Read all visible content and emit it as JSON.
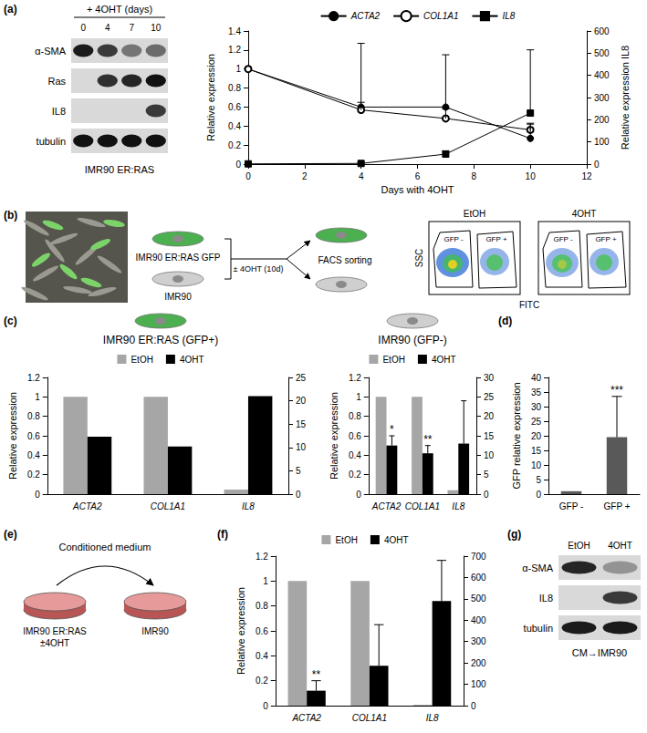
{
  "panel_labels": [
    "(a)",
    "(b)",
    "(c)",
    "(d)",
    "(e)",
    "(f)",
    "(g)"
  ],
  "blots": [
    {
      "header": "+ 4OHT (days)",
      "lanes": [
        "0",
        "4",
        "7",
        "10"
      ],
      "rows": [
        {
          "label": "α-SMA",
          "intensity": [
            0.95,
            0.8,
            0.5,
            0.55
          ]
        },
        {
          "label": "Ras",
          "intensity": [
            0,
            0.85,
            0.9,
            1
          ]
        },
        {
          "label": "IL8",
          "intensity": [
            0,
            0,
            0,
            0.8
          ]
        },
        {
          "label": "tubulin",
          "intensity": [
            1,
            1,
            1,
            1
          ]
        }
      ],
      "caption": "IMR90 ER:RAS"
    },
    {
      "lanes": [
        "EtOH",
        "4OHT"
      ],
      "rows": [
        {
          "label": "α-SMA",
          "intensity": [
            0.9,
            0.35
          ]
        },
        {
          "label": "IL8",
          "intensity": [
            0,
            0.8
          ]
        },
        {
          "label": "tubulin",
          "intensity": [
            0.95,
            0.95
          ]
        }
      ],
      "caption": "CM→IMR90"
    }
  ],
  "diagram_b": {
    "cells": [
      "IMR90 ER:RAS GFP",
      "IMR90"
    ],
    "treatment": "± 4OHT (10d)",
    "sorting": "FACS sorting"
  },
  "facs": {
    "plots": [
      "EtOH",
      "4OHT"
    ],
    "x_label": "FITC",
    "y_label": "SSC",
    "gates": [
      "GFP -",
      "GFP +"
    ]
  },
  "diagram_e": {
    "title": "Conditioned medium",
    "source": [
      "IMR90 ER:RAS",
      "±4OHT"
    ],
    "target": "IMR90"
  },
  "chart_data": [
    {
      "type": "line",
      "x": [
        0,
        4,
        7,
        10
      ],
      "series": [
        {
          "name": "ACTA2",
          "color": "#000000",
          "marker": "circle",
          "values": [
            1,
            0.6,
            0.6,
            0.27
          ],
          "errors": [
            null,
            0.67,
            0.55,
            0.15
          ]
        },
        {
          "name": "COL1A1",
          "color": "#000000",
          "marker": "open circle",
          "values": [
            1,
            0.57,
            0.48,
            0.36
          ],
          "errors": [
            null,
            0.08,
            0.1,
            0.07
          ]
        },
        {
          "name": "IL8",
          "color": "#000000",
          "marker": "square",
          "axis": "y2",
          "values": [
            1,
            3,
            45,
            230
          ],
          "errors": [
            null,
            2,
            15,
            285
          ]
        }
      ],
      "xlim": [
        0,
        12
      ],
      "xticks": [
        0,
        2,
        4,
        6,
        8,
        10,
        12
      ],
      "ylim": [
        0,
        1.4
      ],
      "yticks": [
        0,
        0.2,
        0.4,
        0.6,
        0.8,
        1,
        1.2,
        1.4
      ],
      "y2lim": [
        0,
        600
      ],
      "y2ticks": [
        0,
        100,
        200,
        300,
        400,
        500,
        600
      ],
      "x_label": "Days with 4OHT",
      "y_label": "Relative expression",
      "y2_label": "Relative expression IL8",
      "legend": "top",
      "grid": false
    },
    {
      "type": "bar",
      "title": "IMR90 ER:RAS (GFP+)",
      "categories": [
        "ACTA2",
        "COL1A1",
        "IL8"
      ],
      "series": [
        {
          "name": "EtOH",
          "color": "#a6a6a6",
          "values": [
            1,
            1,
            null
          ]
        },
        {
          "name": "4OHT",
          "color": "#000000",
          "values": [
            0.59,
            0.49,
            null
          ]
        },
        {
          "name": "EtOH",
          "color": "#a6a6a6",
          "axis": "y2",
          "values": [
            null,
            null,
            1
          ]
        },
        {
          "name": "4OHT",
          "color": "#000000",
          "axis": "y2",
          "values": [
            null,
            null,
            21
          ]
        }
      ],
      "ylim": [
        0,
        1.2
      ],
      "yticks": [
        0,
        0.2,
        0.4,
        0.6,
        0.8,
        1,
        1.2
      ],
      "y2lim": [
        0,
        25
      ],
      "y2ticks": [
        0,
        5,
        10,
        15,
        20,
        25
      ],
      "y_label": "Relative expression",
      "legend": "top",
      "grid": false
    },
    {
      "type": "bar",
      "title": "IMR90 (GFP-)",
      "categories": [
        "ACTA2",
        "COL1A1",
        "IL8"
      ],
      "series": [
        {
          "name": "EtOH",
          "color": "#a6a6a6",
          "values": [
            1,
            1,
            null
          ]
        },
        {
          "name": "4OHT",
          "color": "#000000",
          "values": [
            0.5,
            0.42,
            null
          ],
          "errors": [
            0.1,
            0.08,
            null
          ]
        },
        {
          "name": "EtOH",
          "color": "#a6a6a6",
          "axis": "y2",
          "values": [
            null,
            null,
            1
          ]
        },
        {
          "name": "4OHT",
          "color": "#000000",
          "axis": "y2",
          "values": [
            null,
            null,
            13
          ],
          "errors": [
            null,
            null,
            11
          ]
        }
      ],
      "ylim": [
        0,
        1.2
      ],
      "yticks": [
        0,
        0.2,
        0.4,
        0.6,
        0.8,
        1,
        1.2
      ],
      "y2lim": [
        0,
        30
      ],
      "y2ticks": [
        0,
        5,
        10,
        15,
        20,
        25,
        30
      ],
      "y_label": "Relative expression",
      "annotations": [
        {
          "text": "*",
          "category": "ACTA2",
          "series": "4OHT"
        },
        {
          "text": "**",
          "category": "COL1A1",
          "series": "4OHT"
        }
      ],
      "legend": "top",
      "grid": false
    },
    {
      "type": "bar",
      "categories": [
        "GFP -",
        "GFP +"
      ],
      "values": [
        1,
        19.5
      ],
      "errors": [
        null,
        14
      ],
      "color": "#595959",
      "ylim": [
        0,
        40
      ],
      "yticks": [
        0,
        5,
        10,
        15,
        20,
        25,
        30,
        35,
        40
      ],
      "y_label": "GFP relative expression",
      "annotations": [
        {
          "text": "***",
          "category": "GFP +"
        }
      ],
      "grid": false
    },
    {
      "type": "bar",
      "categories": [
        "ACTA2",
        "COL1A1",
        "IL8"
      ],
      "series": [
        {
          "name": "EtOH",
          "color": "#a6a6a6",
          "values": [
            1,
            1,
            null
          ]
        },
        {
          "name": "4OHT",
          "color": "#000000",
          "values": [
            0.12,
            0.32,
            null
          ],
          "errors": [
            0.08,
            0.33,
            null
          ]
        },
        {
          "name": "EtOH",
          "color": "#a6a6a6",
          "axis": "y2",
          "values": [
            null,
            null,
            4
          ]
        },
        {
          "name": "4OHT",
          "color": "#000000",
          "axis": "y2",
          "values": [
            null,
            null,
            490
          ],
          "errors": [
            null,
            null,
            190
          ]
        }
      ],
      "ylim": [
        0,
        1.2
      ],
      "yticks": [
        0,
        0.2,
        0.4,
        0.6,
        0.8,
        1,
        1.2
      ],
      "y2lim": [
        0,
        700
      ],
      "y2ticks": [
        0,
        100,
        200,
        300,
        400,
        500,
        600,
        700
      ],
      "y_label": "Relative expression",
      "annotations": [
        {
          "text": "**",
          "category": "ACTA2",
          "series": "4OHT"
        }
      ],
      "legend": "top",
      "grid": false
    }
  ]
}
